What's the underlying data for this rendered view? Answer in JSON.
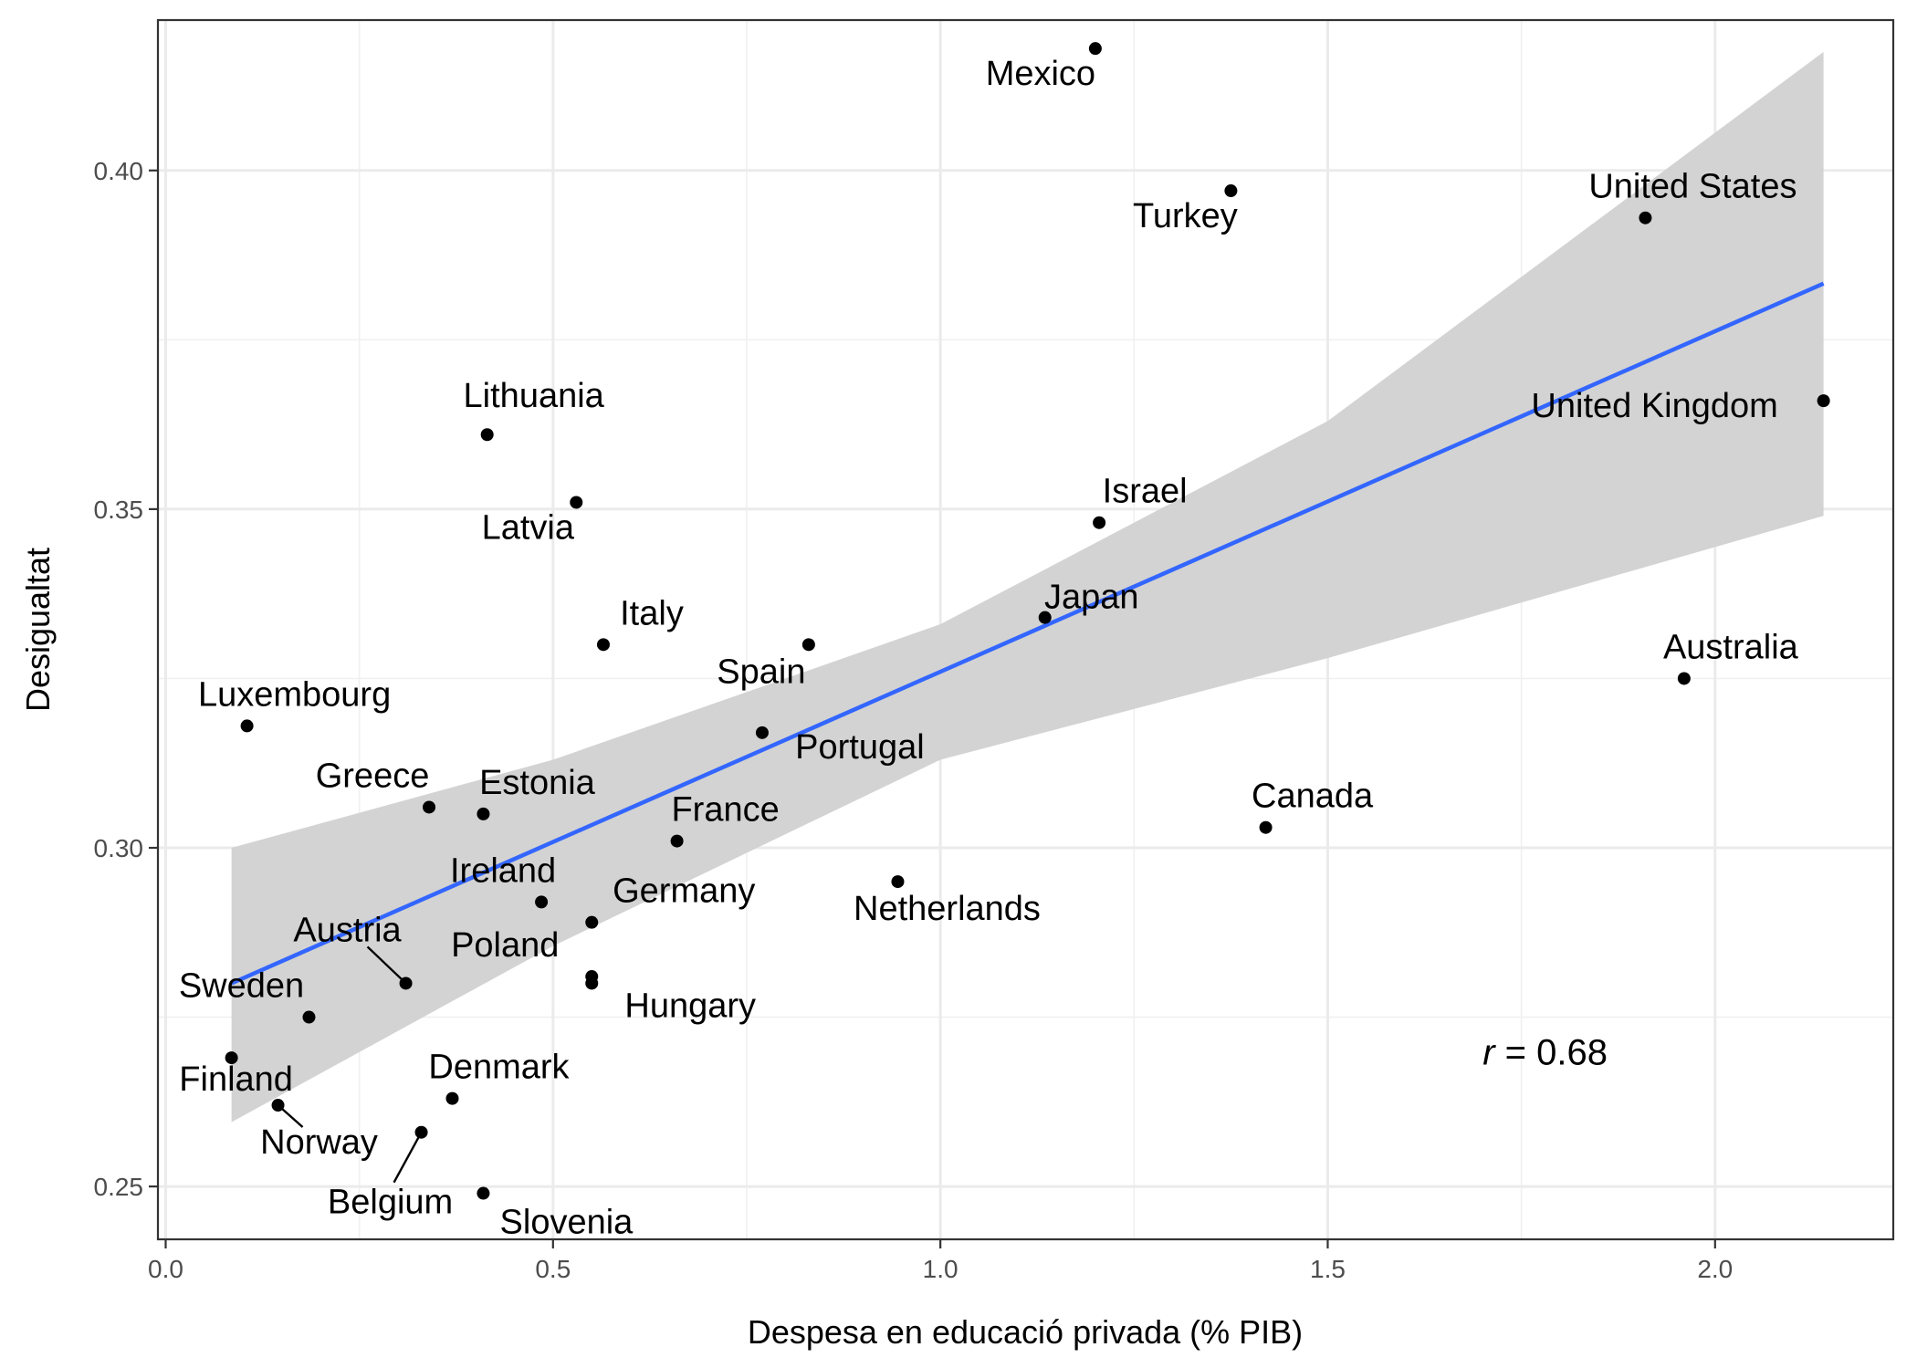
{
  "chart_data": {
    "type": "scatter",
    "xlabel": "Despesa en educació privada (% PIB)",
    "ylabel": "Desigualtat",
    "xlim": [
      -0.01,
      2.23
    ],
    "ylim": [
      0.2422,
      0.4222
    ],
    "x_ticks": [
      0.0,
      0.5,
      1.0,
      1.5,
      2.0
    ],
    "x_tick_labels": [
      "0.0",
      "0.5",
      "1.0",
      "1.5",
      "2.0"
    ],
    "y_ticks": [
      0.25,
      0.3,
      0.35,
      0.4
    ],
    "y_tick_labels": [
      "0.25",
      "0.30",
      "0.35",
      "0.40"
    ],
    "grid": true,
    "annotation": {
      "italic": "r",
      "rest": " = 0.68",
      "x": 1.7,
      "y": 0.268
    },
    "points": [
      {
        "name": "Mexico",
        "x": 1.2,
        "y": 0.418
      },
      {
        "name": "Turkey",
        "x": 1.375,
        "y": 0.397
      },
      {
        "name": "United States",
        "x": 1.91,
        "y": 0.393
      },
      {
        "name": "United Kingdom",
        "x": 2.14,
        "y": 0.366
      },
      {
        "name": "Lithuania",
        "x": 0.415,
        "y": 0.361
      },
      {
        "name": "Latvia",
        "x": 0.53,
        "y": 0.351
      },
      {
        "name": "Israel",
        "x": 1.205,
        "y": 0.348
      },
      {
        "name": "Japan",
        "x": 1.135,
        "y": 0.334
      },
      {
        "name": "Italy",
        "x": 0.565,
        "y": 0.33
      },
      {
        "name": "Spain",
        "x": 0.83,
        "y": 0.33
      },
      {
        "name": "Australia",
        "x": 1.96,
        "y": 0.325
      },
      {
        "name": "Luxembourg",
        "x": 0.105,
        "y": 0.318
      },
      {
        "name": "Portugal",
        "x": 0.77,
        "y": 0.317
      },
      {
        "name": "Greece",
        "x": 0.34,
        "y": 0.306
      },
      {
        "name": "Estonia",
        "x": 0.41,
        "y": 0.305
      },
      {
        "name": "Canada",
        "x": 1.42,
        "y": 0.303
      },
      {
        "name": "France",
        "x": 0.66,
        "y": 0.301
      },
      {
        "name": "Netherlands",
        "x": 0.945,
        "y": 0.295
      },
      {
        "name": "Ireland",
        "x": 0.485,
        "y": 0.292
      },
      {
        "name": "Germany",
        "x": 0.55,
        "y": 0.289
      },
      {
        "name": "Poland",
        "x": 0.55,
        "y": 0.281
      },
      {
        "name": "Hungary",
        "x": 0.55,
        "y": 0.28
      },
      {
        "name": "Austria",
        "x": 0.31,
        "y": 0.28
      },
      {
        "name": "Sweden",
        "x": 0.185,
        "y": 0.275
      },
      {
        "name": "Finland",
        "x": 0.085,
        "y": 0.269
      },
      {
        "name": "Denmark",
        "x": 0.37,
        "y": 0.263
      },
      {
        "name": "Norway",
        "x": 0.145,
        "y": 0.262
      },
      {
        "name": "Belgium",
        "x": 0.33,
        "y": 0.258
      },
      {
        "name": "Slovenia",
        "x": 0.41,
        "y": 0.249
      }
    ],
    "trend_line": {
      "method": "lm",
      "color": "#3366FF",
      "x": [
        0.085,
        2.14
      ],
      "y": [
        0.28,
        0.3833
      ]
    },
    "confidence_band": {
      "color": "#d3d3d3",
      "x": [
        0.085,
        0.5,
        1.0,
        1.5,
        2.14
      ],
      "upper": [
        0.3,
        0.313,
        0.333,
        0.363,
        0.4175
      ],
      "lower": [
        0.2595,
        0.2855,
        0.313,
        0.328,
        0.349
      ]
    }
  }
}
